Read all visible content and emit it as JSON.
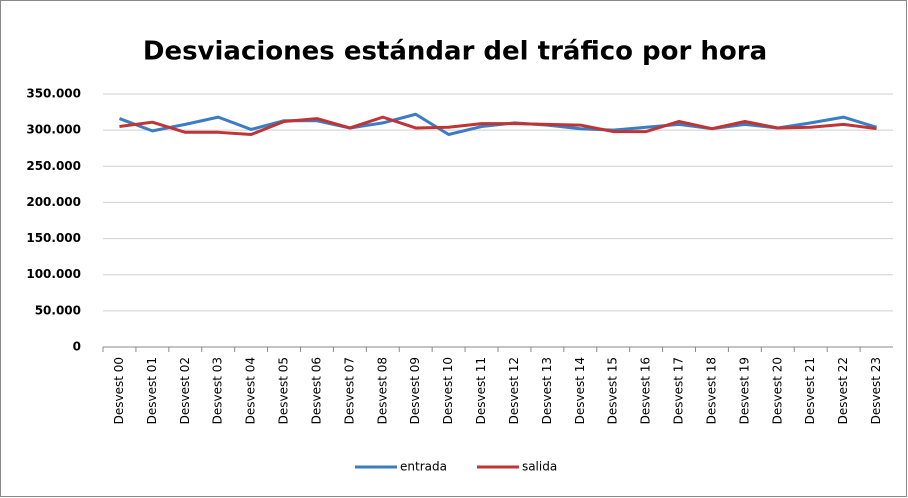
{
  "chart_data": {
    "type": "line",
    "title": "Desviaciones estándar del tráfico por hora",
    "categories": [
      "Desvest 00",
      "Desvest 01",
      "Desvest 02",
      "Desvest 03",
      "Desvest 04",
      "Desvest 05",
      "Desvest 06",
      "Desvest 07",
      "Desvest 08",
      "Desvest 09",
      "Desvest 10",
      "Desvest 11",
      "Desvest 12",
      "Desvest 13",
      "Desvest 14",
      "Desvest 15",
      "Desvest 16",
      "Desvest 17",
      "Desvest 18",
      "Desvest 19",
      "Desvest 20",
      "Desvest 21",
      "Desvest 22",
      "Desvest 23"
    ],
    "series": [
      {
        "name": "entrada",
        "color": "#3b7cc4",
        "values": [
          316000,
          299000,
          308000,
          318000,
          301000,
          313000,
          313000,
          303000,
          310000,
          322000,
          294000,
          305000,
          310000,
          307000,
          302000,
          300000,
          304000,
          308000,
          302000,
          308000,
          303000,
          310000,
          318000,
          304000
        ]
      },
      {
        "name": "salida",
        "color": "#bf3535",
        "values": [
          305000,
          311000,
          297000,
          297000,
          294000,
          312000,
          316000,
          303000,
          318000,
          303000,
          304000,
          309000,
          309000,
          308000,
          307000,
          298000,
          298000,
          312000,
          302000,
          312000,
          303000,
          304000,
          308000,
          302000
        ]
      }
    ],
    "ylim": [
      0,
      350000
    ],
    "yticks": [
      0,
      {
        "value": 50000,
        "label": "50.000"
      },
      {
        "value": 100000,
        "label": "100.000"
      },
      {
        "value": 150000,
        "label": "150.000"
      },
      {
        "value": 200000,
        "label": "200.000"
      },
      {
        "value": 250000,
        "label": "250.000"
      },
      {
        "value": 300000,
        "label": "300.000"
      },
      {
        "value": 350000,
        "label": "350.000"
      }
    ],
    "grid": true,
    "legend": "bottom"
  }
}
